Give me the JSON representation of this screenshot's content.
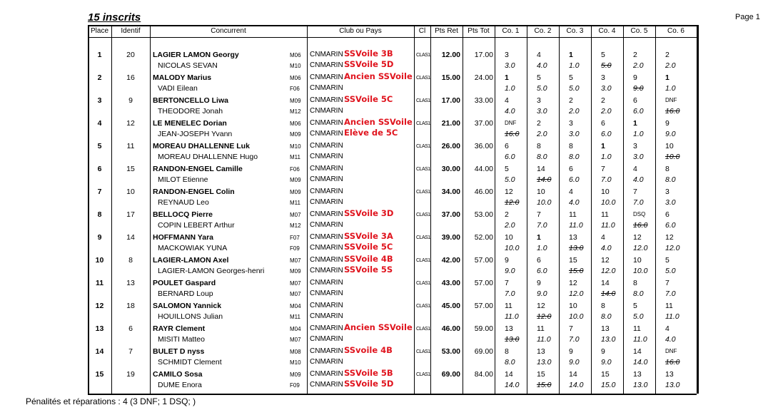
{
  "header": {
    "title": "15 inscrits",
    "page": "Page 1"
  },
  "table": {
    "columns": [
      "Place",
      "Identif",
      "Concurrent",
      "Club  ou  Pays",
      "Cl",
      "Pts Ret",
      "Pts Tot",
      "Co. 1",
      "Co. 2",
      "Co. 3",
      "Co. 4",
      "Co. 5",
      "Co. 6"
    ],
    "rows": [
      {
        "place": "1",
        "id": "20",
        "helm": {
          "name": "LAGIER LAMON Georgy",
          "cat": "M06",
          "club": "CNMARIN",
          "note": "SSVoile 3B"
        },
        "crew": {
          "name": "NICOLAS SEVAN",
          "cat": "M10",
          "club": "CNMARIN",
          "note": "SSVoile 5D"
        },
        "cls": "CLAS1",
        "ret": "12.00",
        "tot": "17.00",
        "races": [
          {
            "rank": "3",
            "pts": "3.0"
          },
          {
            "rank": "4",
            "pts": "4.0"
          },
          {
            "rank": "1",
            "pts": "1.0"
          },
          {
            "rank": "5",
            "pts": "5.0",
            "dropped": true
          },
          {
            "rank": "2",
            "pts": "2.0"
          },
          {
            "rank": "2",
            "pts": "2.0"
          }
        ]
      },
      {
        "place": "2",
        "id": "16",
        "helm": {
          "name": "MALODY Marius",
          "cat": "M06",
          "club": "CNMARIN",
          "note": "Ancien SSVoile"
        },
        "crew": {
          "name": "VADI Eilean",
          "cat": "F06",
          "club": "CNMARIN"
        },
        "cls": "CLAS1",
        "ret": "15.00",
        "tot": "24.00",
        "races": [
          {
            "rank": "1",
            "pts": "1.0"
          },
          {
            "rank": "5",
            "pts": "5.0"
          },
          {
            "rank": "5",
            "pts": "5.0"
          },
          {
            "rank": "3",
            "pts": "3.0"
          },
          {
            "rank": "9",
            "pts": "9.0",
            "dropped": true
          },
          {
            "rank": "1",
            "pts": "1.0"
          }
        ]
      },
      {
        "place": "3",
        "id": "9",
        "helm": {
          "name": "BERTONCELLO Liwa",
          "cat": "M09",
          "club": "CNMARIN",
          "note": "SSVoile 5C"
        },
        "crew": {
          "name": "THEODORE Jonah",
          "cat": "M12",
          "club": "CNMARIN"
        },
        "cls": "CLAS1",
        "ret": "17.00",
        "tot": "33.00",
        "races": [
          {
            "rank": "4",
            "pts": "4.0"
          },
          {
            "rank": "3",
            "pts": "3.0"
          },
          {
            "rank": "2",
            "pts": "2.0"
          },
          {
            "rank": "2",
            "pts": "2.0"
          },
          {
            "rank": "6",
            "pts": "6.0"
          },
          {
            "rank": "DNF",
            "pts": "16.0",
            "dropped": true
          }
        ]
      },
      {
        "place": "4",
        "id": "12",
        "helm": {
          "name": "LE MENELEC Dorian",
          "cat": "M06",
          "club": "CNMARIN",
          "note": "Ancien SSVoile"
        },
        "crew": {
          "name": "JEAN-JOSEPH Yvann",
          "cat": "M09",
          "club": "CNMARIN",
          "note": "Elève de 5C"
        },
        "cls": "CLAS1",
        "ret": "21.00",
        "tot": "37.00",
        "races": [
          {
            "rank": "DNF",
            "pts": "16.0",
            "dropped": true
          },
          {
            "rank": "2",
            "pts": "2.0"
          },
          {
            "rank": "3",
            "pts": "3.0"
          },
          {
            "rank": "6",
            "pts": "6.0"
          },
          {
            "rank": "1",
            "pts": "1.0"
          },
          {
            "rank": "9",
            "pts": "9.0"
          }
        ]
      },
      {
        "place": "5",
        "id": "11",
        "helm": {
          "name": "MOREAU DHALLENNE Luk",
          "cat": "M10",
          "club": "CNMARIN"
        },
        "crew": {
          "name": "MOREAU DHALLENNE Hugo",
          "cat": "M11",
          "club": "CNMARIN"
        },
        "cls": "CLAS1",
        "ret": "26.00",
        "tot": "36.00",
        "races": [
          {
            "rank": "6",
            "pts": "6.0"
          },
          {
            "rank": "8",
            "pts": "8.0"
          },
          {
            "rank": "8",
            "pts": "8.0"
          },
          {
            "rank": "1",
            "pts": "1.0"
          },
          {
            "rank": "3",
            "pts": "3.0"
          },
          {
            "rank": "10",
            "pts": "10.0",
            "dropped": true
          }
        ]
      },
      {
        "place": "6",
        "id": "15",
        "helm": {
          "name": "RANDON-ENGEL Camille",
          "cat": "F06",
          "club": "CNMARIN"
        },
        "crew": {
          "name": "MILOT Etienne",
          "cat": "M09",
          "club": "CNMARIN"
        },
        "cls": "CLAS1",
        "ret": "30.00",
        "tot": "44.00",
        "races": [
          {
            "rank": "5",
            "pts": "5.0"
          },
          {
            "rank": "14",
            "pts": "14.0",
            "dropped": true
          },
          {
            "rank": "6",
            "pts": "6.0"
          },
          {
            "rank": "7",
            "pts": "7.0"
          },
          {
            "rank": "4",
            "pts": "4.0"
          },
          {
            "rank": "8",
            "pts": "8.0"
          }
        ]
      },
      {
        "place": "7",
        "id": "10",
        "helm": {
          "name": "RANDON-ENGEL Colin",
          "cat": "M09",
          "club": "CNMARIN"
        },
        "crew": {
          "name": "REYNAUD Leo",
          "cat": "M11",
          "club": "CNMARIN"
        },
        "cls": "CLAS1",
        "ret": "34.00",
        "tot": "46.00",
        "races": [
          {
            "rank": "12",
            "pts": "12.0",
            "dropped": true
          },
          {
            "rank": "10",
            "pts": "10.0"
          },
          {
            "rank": "4",
            "pts": "4.0"
          },
          {
            "rank": "10",
            "pts": "10.0"
          },
          {
            "rank": "7",
            "pts": "7.0"
          },
          {
            "rank": "3",
            "pts": "3.0"
          }
        ]
      },
      {
        "place": "8",
        "id": "17",
        "helm": {
          "name": "BELLOCQ Pierre",
          "cat": "M07",
          "club": "CNMARIN",
          "note": "SSVoile 3D"
        },
        "crew": {
          "name": "COPIN LEBERT Arthur",
          "cat": "M12",
          "club": "CNMARIN"
        },
        "cls": "CLAS1",
        "ret": "37.00",
        "tot": "53.00",
        "races": [
          {
            "rank": "2",
            "pts": "2.0"
          },
          {
            "rank": "7",
            "pts": "7.0"
          },
          {
            "rank": "11",
            "pts": "11.0"
          },
          {
            "rank": "11",
            "pts": "11.0"
          },
          {
            "rank": "DSQ",
            "pts": "16.0",
            "dropped": true
          },
          {
            "rank": "6",
            "pts": "6.0"
          }
        ]
      },
      {
        "place": "9",
        "id": "14",
        "helm": {
          "name": "HOFFMANN Yara",
          "cat": "F07",
          "club": "CNMARIN",
          "note": "SSVoile 3A"
        },
        "crew": {
          "name": "MACKOWIAK YUNA",
          "cat": "F09",
          "club": "CNMARIN",
          "note": "SSVoile 5C"
        },
        "cls": "CLAS1",
        "ret": "39.00",
        "tot": "52.00",
        "races": [
          {
            "rank": "10",
            "pts": "10.0"
          },
          {
            "rank": "1",
            "pts": "1.0"
          },
          {
            "rank": "13",
            "pts": "13.0",
            "dropped": true
          },
          {
            "rank": "4",
            "pts": "4.0"
          },
          {
            "rank": "12",
            "pts": "12.0"
          },
          {
            "rank": "12",
            "pts": "12.0"
          }
        ]
      },
      {
        "place": "10",
        "id": "8",
        "helm": {
          "name": "LAGIER-LAMON Axel",
          "cat": "M07",
          "club": "CNMARIN",
          "note": "SSVoile 4B"
        },
        "crew": {
          "name": "LAGIER-LAMON Georges-henri",
          "cat": "M09",
          "club": "CNMARIN",
          "note": "SSVoile 5S"
        },
        "cls": "CLAS1",
        "ret": "42.00",
        "tot": "57.00",
        "races": [
          {
            "rank": "9",
            "pts": "9.0"
          },
          {
            "rank": "6",
            "pts": "6.0"
          },
          {
            "rank": "15",
            "pts": "15.0",
            "dropped": true
          },
          {
            "rank": "12",
            "pts": "12.0"
          },
          {
            "rank": "10",
            "pts": "10.0"
          },
          {
            "rank": "5",
            "pts": "5.0"
          }
        ]
      },
      {
        "place": "11",
        "id": "13",
        "helm": {
          "name": "POULET Gaspard",
          "cat": "M07",
          "club": "CNMARIN"
        },
        "crew": {
          "name": "BERNARD Loup",
          "cat": "M07",
          "club": "CNMARIN"
        },
        "cls": "CLAS1",
        "ret": "43.00",
        "tot": "57.00",
        "races": [
          {
            "rank": "7",
            "pts": "7.0"
          },
          {
            "rank": "9",
            "pts": "9.0"
          },
          {
            "rank": "12",
            "pts": "12.0"
          },
          {
            "rank": "14",
            "pts": "14.0",
            "dropped": true
          },
          {
            "rank": "8",
            "pts": "8.0"
          },
          {
            "rank": "7",
            "pts": "7.0"
          }
        ]
      },
      {
        "place": "12",
        "id": "18",
        "helm": {
          "name": "SALOMON Yannick",
          "cat": "M04",
          "club": "CNMARIN"
        },
        "crew": {
          "name": "HOUILLONS Julian",
          "cat": "M11",
          "club": "CNMARIN"
        },
        "cls": "CLAS1",
        "ret": "45.00",
        "tot": "57.00",
        "races": [
          {
            "rank": "11",
            "pts": "11.0"
          },
          {
            "rank": "12",
            "pts": "12.0",
            "dropped": true
          },
          {
            "rank": "10",
            "pts": "10.0"
          },
          {
            "rank": "8",
            "pts": "8.0"
          },
          {
            "rank": "5",
            "pts": "5.0"
          },
          {
            "rank": "11",
            "pts": "11.0"
          }
        ]
      },
      {
        "place": "13",
        "id": "6",
        "helm": {
          "name": "RAYR Clement",
          "cat": "M04",
          "club": "CNMARIN",
          "note": "Ancien SSVoile"
        },
        "crew": {
          "name": "MISITI Matteo",
          "cat": "M07",
          "club": "CNMARIN"
        },
        "cls": "CLAS1",
        "ret": "46.00",
        "tot": "59.00",
        "races": [
          {
            "rank": "13",
            "pts": "13.0",
            "dropped": true
          },
          {
            "rank": "11",
            "pts": "11.0"
          },
          {
            "rank": "7",
            "pts": "7.0"
          },
          {
            "rank": "13",
            "pts": "13.0"
          },
          {
            "rank": "11",
            "pts": "11.0"
          },
          {
            "rank": "4",
            "pts": "4.0"
          }
        ]
      },
      {
        "place": "14",
        "id": "7",
        "helm": {
          "name": "BULET D nyss",
          "cat": "M08",
          "club": "CNMARIN",
          "note": "SSvoile 4B"
        },
        "crew": {
          "name": "SCHMIDT Clement",
          "cat": "M10",
          "club": "CNMARIN"
        },
        "cls": "CLAS1",
        "ret": "53.00",
        "tot": "69.00",
        "races": [
          {
            "rank": "8",
            "pts": "8.0"
          },
          {
            "rank": "13",
            "pts": "13.0"
          },
          {
            "rank": "9",
            "pts": "9.0"
          },
          {
            "rank": "9",
            "pts": "9.0"
          },
          {
            "rank": "14",
            "pts": "14.0"
          },
          {
            "rank": "DNF",
            "pts": "16.0",
            "dropped": true
          }
        ]
      },
      {
        "place": "15",
        "id": "19",
        "helm": {
          "name": "CAMILO Sosa",
          "cat": "M09",
          "club": "CNMARIN",
          "note": "SSVoile 5B"
        },
        "crew": {
          "name": "DUME Enora",
          "cat": "F09",
          "club": "CNMARIN",
          "note": "SSVoile 5D"
        },
        "cls": "CLAS1",
        "ret": "69.00",
        "tot": "84.00",
        "races": [
          {
            "rank": "14",
            "pts": "14.0"
          },
          {
            "rank": "15",
            "pts": "15.0",
            "dropped": true
          },
          {
            "rank": "14",
            "pts": "14.0"
          },
          {
            "rank": "15",
            "pts": "15.0"
          },
          {
            "rank": "13",
            "pts": "13.0"
          },
          {
            "rank": "13",
            "pts": "13.0"
          }
        ]
      }
    ]
  },
  "footer": "Pénalités et réparations : 4 (3 DNF; 1 DSQ; )"
}
